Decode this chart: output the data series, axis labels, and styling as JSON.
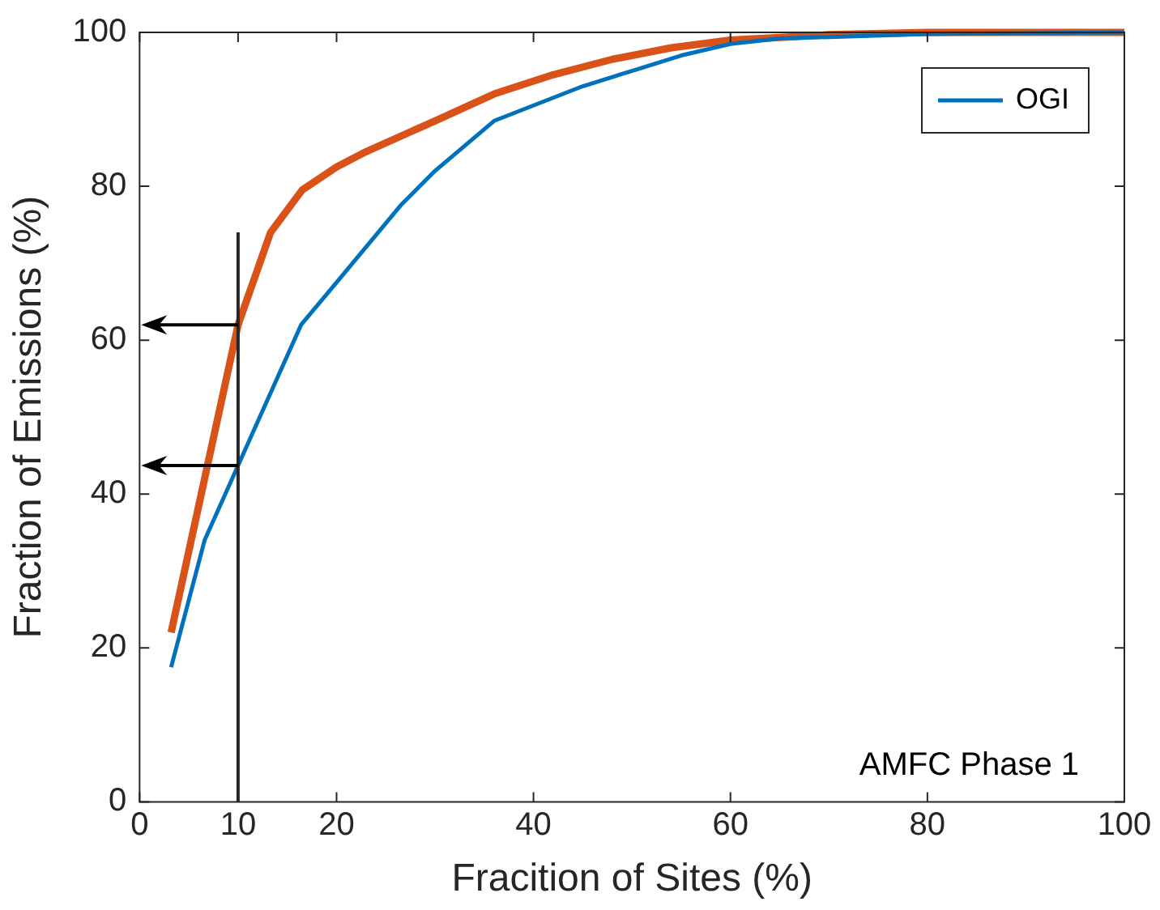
{
  "chart_data": {
    "type": "line",
    "xlabel": "Fracition of Sites (%)",
    "ylabel": "Fraction of Emissions (%)",
    "xlim": [
      0,
      100
    ],
    "ylim": [
      0,
      100
    ],
    "xticks": [
      0,
      10,
      20,
      40,
      60,
      80,
      100
    ],
    "yticks": [
      0,
      20,
      40,
      60,
      80,
      100
    ],
    "grid": false,
    "legend": "top right",
    "marker": "none",
    "line_style": "solid",
    "series": [
      {
        "name": "OGI",
        "color": "#0072bd",
        "x": [
          3.2,
          6.6,
          16.4,
          20,
          26.5,
          30,
          36,
          40,
          45,
          50,
          55,
          60,
          65,
          80,
          100
        ],
        "values": [
          17.5,
          34,
          62,
          67.5,
          77.5,
          82,
          88.5,
          90.5,
          93,
          95,
          97,
          98.5,
          99.2,
          99.8,
          100
        ]
      },
      {
        "color": "#d95319",
        "x": [
          3.2,
          6.6,
          10,
          13.3,
          16.5,
          20,
          23,
          30,
          36,
          42,
          48,
          54,
          60,
          70,
          80,
          100
        ],
        "values": [
          22,
          42,
          62,
          74,
          79.5,
          82.5,
          84.5,
          88.5,
          92,
          94.5,
          96.5,
          98,
          99,
          99.7,
          100,
          100
        ]
      }
    ],
    "ref_lines": [
      {
        "axis": "x",
        "value": 10,
        "color": "#262626"
      }
    ],
    "annotations": [
      "AMFC Phase 1"
    ]
  }
}
